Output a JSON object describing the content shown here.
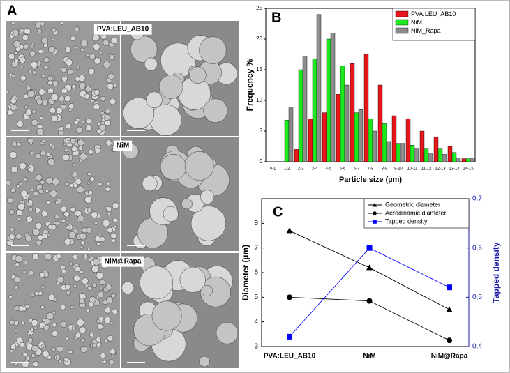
{
  "panel_a": {
    "letter": "A",
    "labels": [
      "PVA:LEU_AB10",
      "NiM",
      "NiM@Rapa"
    ]
  },
  "chart_data": [
    {
      "type": "bar",
      "panel_label": "B",
      "x_label": "Particle size (µm)",
      "y_label": "Frequency %",
      "categories": [
        "0-1",
        "1-2",
        "2-3",
        "3-4",
        "4-5",
        "5-6",
        "6-7",
        "7-8",
        "8-9",
        "9-10",
        "10-11",
        "11-12",
        "12-13",
        "13-14",
        "14-15"
      ],
      "series": [
        {
          "name": "PVA:LEU_AB10",
          "color": "#e8161b",
          "values": [
            0,
            0,
            2,
            7,
            8,
            11,
            16,
            17.5,
            12.5,
            7.5,
            7,
            5,
            4,
            2.5,
            0.5
          ]
        },
        {
          "name": "NiM",
          "color": "#1de81d",
          "values": [
            0,
            6.8,
            15,
            16.8,
            20,
            15.6,
            8,
            7,
            6.2,
            3,
            2.7,
            2.2,
            2.2,
            1.5,
            0.5
          ]
        },
        {
          "name": "NiM_Rapa",
          "color": "#8c8c8c",
          "values": [
            0,
            8.8,
            17.2,
            24,
            21,
            12.5,
            8.5,
            5,
            3.3,
            3,
            2.2,
            1.3,
            1.2,
            0.5,
            0.5
          ]
        }
      ],
      "ylim": [
        0,
        25
      ],
      "yticks": [
        0,
        5,
        10,
        15,
        20,
        25
      ],
      "legend": "top-right"
    },
    {
      "type": "line",
      "panel_label": "C",
      "y_label": "Diameter (µm)",
      "y2_label": "Tapped density",
      "categories": [
        "PVA:LEU_AB10",
        "NiM",
        "NiM@Rapa"
      ],
      "series": [
        {
          "name": "Geometric diameter",
          "color": "#000000",
          "marker": "triangle",
          "values": [
            7.7,
            6.2,
            4.5
          ]
        },
        {
          "name": "Aerodinamic diameter",
          "color": "#000000",
          "marker": "circle",
          "values": [
            5.0,
            4.85,
            3.25
          ]
        },
        {
          "name": "Tapped density",
          "color": "#0000ff",
          "marker": "square",
          "axis": "y2",
          "values": [
            0.42,
            0.6,
            0.52
          ]
        }
      ],
      "ylim": [
        3,
        9
      ],
      "yticks": [
        3,
        4,
        5,
        6,
        7,
        8
      ],
      "y2lim": [
        0.4,
        0.7
      ],
      "y2ticks": [
        {
          "value": 0.4,
          "label": "0,4"
        },
        {
          "value": 0.5,
          "label": "0,5"
        },
        {
          "value": 0.6,
          "label": "0,6"
        },
        {
          "value": 0.7,
          "label": "0,7"
        }
      ],
      "y2_color": "#1a1aa6",
      "legend": "top-right"
    }
  ]
}
